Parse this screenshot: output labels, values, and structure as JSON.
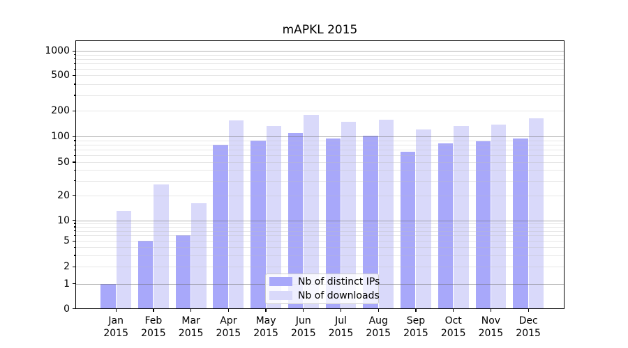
{
  "chart_data": {
    "type": "bar",
    "title": "mAPKL 2015",
    "xlabel": "",
    "ylabel": "",
    "yscale": "log-with-zero-baseline",
    "ylim": [
      0,
      1300
    ],
    "y_ticks": [
      0,
      1,
      2,
      5,
      10,
      20,
      50,
      100,
      200,
      500,
      1000
    ],
    "y_minor_gridlines": [
      3,
      4,
      6,
      7,
      8,
      9,
      30,
      40,
      60,
      70,
      80,
      90,
      300,
      400,
      600,
      700,
      800,
      900
    ],
    "y_major_gridlines": [
      1,
      10,
      100,
      1000
    ],
    "categories": [
      "Jan",
      "Feb",
      "Mar",
      "Apr",
      "May",
      "Jun",
      "Jul",
      "Aug",
      "Sep",
      "Oct",
      "Nov",
      "Dec"
    ],
    "category_year": "2015",
    "series": [
      {
        "name": "Nb of distinct IPs",
        "color": "#a8a8fa",
        "values": [
          1,
          5,
          6,
          80,
          89,
          111,
          95,
          103,
          66,
          83,
          88,
          95
        ]
      },
      {
        "name": "Nb of downloads",
        "color": "#d9d9fa",
        "values": [
          13,
          27,
          16,
          154,
          133,
          179,
          148,
          159,
          121,
          133,
          138,
          163
        ]
      }
    ],
    "legend_position": "lower center inside plot",
    "grid": true,
    "colors": {
      "major_grid": "#b2b2b2",
      "minor_grid": "#e6e6e6",
      "spine": "#000000",
      "background": "#ffffff"
    }
  }
}
